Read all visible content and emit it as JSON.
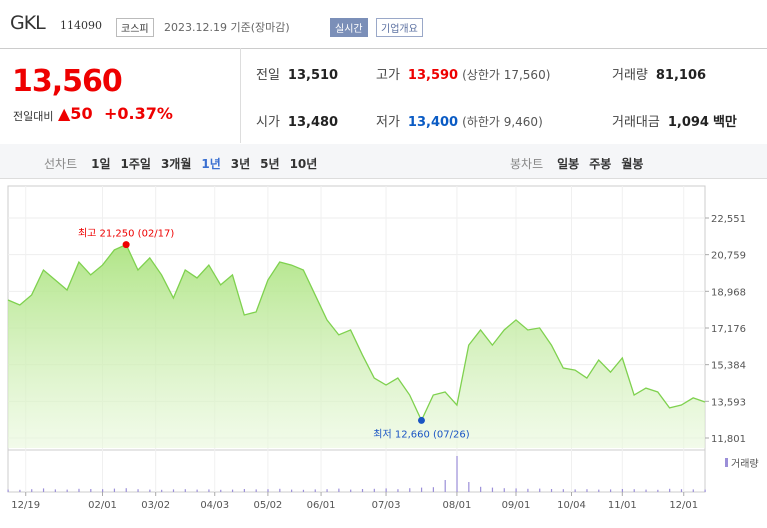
{
  "header": {
    "name": "GKL",
    "code": "114090",
    "market": "코스피",
    "date": "2023.12.19 기준(장마감)",
    "realtime": "실시간",
    "overview": "기업개요"
  },
  "quote": {
    "price": "13,560",
    "change_label": "전일대비",
    "change": "▲50",
    "rate": "+0.37%"
  },
  "table": {
    "rows": [
      [
        [
          "전일",
          "13,510",
          ""
        ],
        [
          "고가",
          "13,590",
          "(상한가 17,560)"
        ],
        [
          "거래량",
          "81,106",
          ""
        ]
      ],
      [
        [
          "시가",
          "13,480",
          ""
        ],
        [
          "저가",
          "13,400",
          "(하한가 9,460)"
        ],
        [
          "거래대금",
          "1,094",
          "백만"
        ]
      ]
    ]
  },
  "tabs": {
    "line_label": "선차트",
    "line": [
      "1일",
      "1주일",
      "3개월",
      "1년",
      "3년",
      "5년",
      "10년"
    ],
    "candle_label": "봉차트",
    "candle": [
      "일봉",
      "주봉",
      "월봉"
    ]
  },
  "chart_data": {
    "type": "line",
    "color": "#7fd14f",
    "values": [
      18544,
      18300,
      18790,
      20010,
      19520,
      19030,
      20400,
      19770,
      20250,
      20990,
      21250,
      20010,
      20600,
      19770,
      18640,
      20010,
      19620,
      20250,
      19280,
      19770,
      17810,
      17960,
      19520,
      20400,
      20250,
      20010,
      18790,
      17570,
      16840,
      17080,
      15860,
      14730,
      14390,
      14730,
      13900,
      12660,
      13900,
      14050,
      13410,
      16340,
      17080,
      16340,
      17080,
      17570,
      17080,
      17180,
      16340,
      15220,
      15120,
      14730,
      15610,
      15020,
      15710,
      13900,
      14240,
      14050,
      13270,
      13410,
      13760,
      13560
    ],
    "volume": {
      "name": "거래량",
      "color": "#9b8fd8",
      "values": [
        60,
        55,
        70,
        90,
        65,
        60,
        80,
        75,
        70,
        85,
        95,
        70,
        60,
        55,
        65,
        70,
        60,
        65,
        55,
        60,
        75,
        65,
        70,
        80,
        60,
        55,
        65,
        70,
        85,
        60,
        75,
        80,
        90,
        70,
        95,
        110,
        120,
        300,
        900,
        250,
        130,
        110,
        95,
        90,
        80,
        85,
        75,
        70,
        65,
        70,
        60,
        65,
        75,
        70,
        60,
        55,
        80,
        70,
        65,
        60
      ]
    },
    "xlim": [
      0,
      59
    ],
    "xticks": [
      {
        "value": 1.5,
        "label": "12/19"
      },
      {
        "value": 8,
        "label": "02/01"
      },
      {
        "value": 12.5,
        "label": "03/02"
      },
      {
        "value": 17.5,
        "label": "04/03"
      },
      {
        "value": 22,
        "label": "05/02"
      },
      {
        "value": 26.5,
        "label": "06/01"
      },
      {
        "value": 32,
        "label": "07/03"
      },
      {
        "value": 38,
        "label": "08/01"
      },
      {
        "value": 43,
        "label": "09/01"
      },
      {
        "value": 47.7,
        "label": "10/04"
      },
      {
        "value": 52,
        "label": "11/01"
      },
      {
        "value": 57.2,
        "label": "12/01"
      }
    ],
    "ylim": [
      11312,
      24114
    ],
    "yticks": [
      {
        "value": 22551,
        "label": "22,551"
      },
      {
        "value": 20759,
        "label": "20,759"
      },
      {
        "value": 18968,
        "label": "18,968"
      },
      {
        "value": 17176,
        "label": "17,176"
      },
      {
        "value": 15384,
        "label": "15,384"
      },
      {
        "value": 13593,
        "label": "13,593"
      },
      {
        "value": 11801,
        "label": "11,801"
      }
    ],
    "grid": true,
    "high": {
      "label": "최고 21,250 (02/17)",
      "value": 21250
    },
    "low": {
      "label": "최저 12,660 (07/26)",
      "value": 12660
    }
  }
}
